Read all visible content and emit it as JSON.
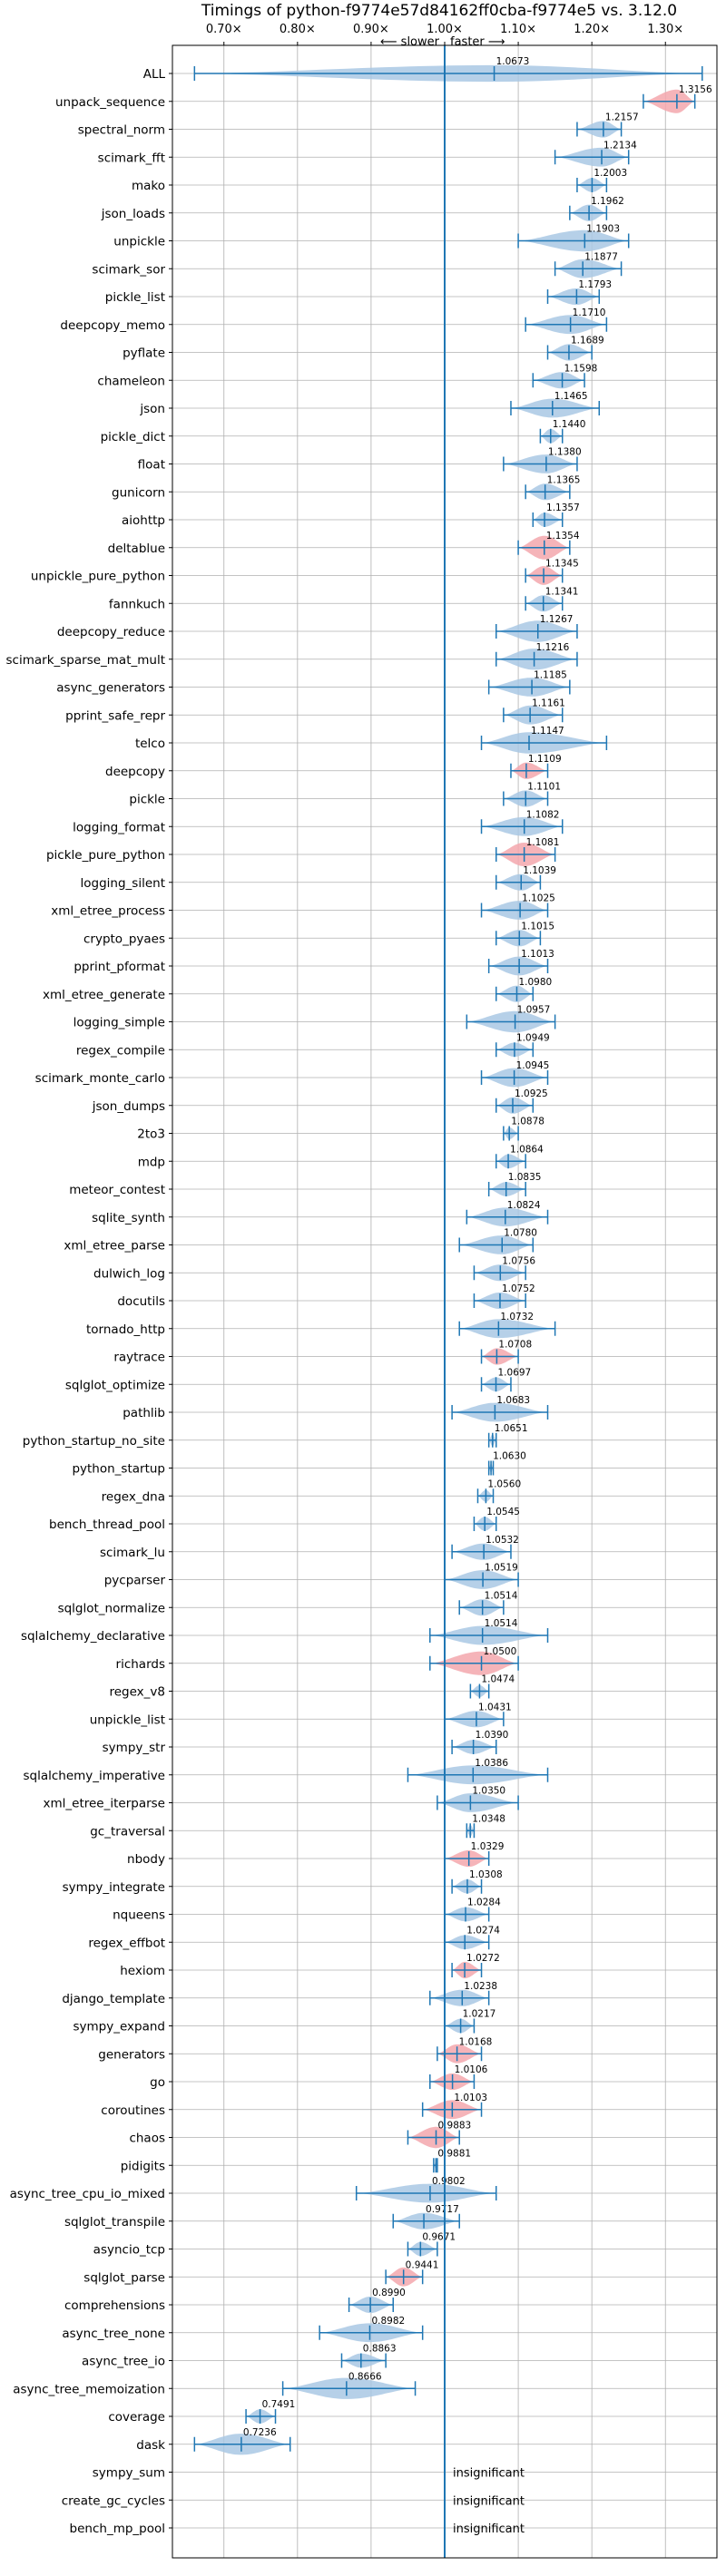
{
  "chart_data": {
    "type": "violin",
    "title": "Timings of python-f9774e57d84162ff0cba-f9774e5 vs. 3.12.0",
    "direction_labels": [
      "⟵ slower",
      "faster ⟶"
    ],
    "xlim": [
      0.63,
      1.37
    ],
    "x_ticks": [
      {
        "v": 0.7,
        "label": "0.70×"
      },
      {
        "v": 0.8,
        "label": "0.80×"
      },
      {
        "v": 0.9,
        "label": "0.90×"
      },
      {
        "v": 1.0,
        "label": "1.00×"
      },
      {
        "v": 1.1,
        "label": "1.10×"
      },
      {
        "v": 1.2,
        "label": "1.20×"
      },
      {
        "v": 1.3,
        "label": "1.30×"
      }
    ],
    "reference_line": 1.0,
    "grid": true,
    "colors": {
      "normal": "#a9c8e4",
      "highlight": "#f3a7ad",
      "line": "#1f77b4"
    },
    "insignificant_label": "insignificant",
    "series": [
      {
        "name": "ALL",
        "value": 1.0673,
        "label": "1.0673",
        "lo": 0.66,
        "hi": 1.35,
        "w": 0.7,
        "hl": false
      },
      {
        "name": "unpack_sequence",
        "value": 1.3156,
        "label": "1.3156",
        "lo": 1.27,
        "hi": 1.34,
        "w": 1.0,
        "hl": true
      },
      {
        "name": "spectral_norm",
        "value": 1.2157,
        "label": "1.2157",
        "lo": 1.18,
        "hi": 1.24,
        "w": 0.7,
        "hl": false
      },
      {
        "name": "scimark_fft",
        "value": 1.2134,
        "label": "1.2134",
        "lo": 1.15,
        "hi": 1.25,
        "w": 0.8,
        "hl": false
      },
      {
        "name": "mako",
        "value": 1.2003,
        "label": "1.2003",
        "lo": 1.18,
        "hi": 1.22,
        "w": 0.6,
        "hl": false
      },
      {
        "name": "json_loads",
        "value": 1.1962,
        "label": "1.1962",
        "lo": 1.17,
        "hi": 1.22,
        "w": 0.7,
        "hl": false
      },
      {
        "name": "unpickle",
        "value": 1.1903,
        "label": "1.1903",
        "lo": 1.1,
        "hi": 1.25,
        "w": 0.9,
        "hl": false
      },
      {
        "name": "scimark_sor",
        "value": 1.1877,
        "label": "1.1877",
        "lo": 1.15,
        "hi": 1.24,
        "w": 0.8,
        "hl": false
      },
      {
        "name": "pickle_list",
        "value": 1.1793,
        "label": "1.1793",
        "lo": 1.14,
        "hi": 1.21,
        "w": 0.7,
        "hl": false
      },
      {
        "name": "deepcopy_memo",
        "value": 1.171,
        "label": "1.1710",
        "lo": 1.11,
        "hi": 1.22,
        "w": 0.8,
        "hl": false
      },
      {
        "name": "pyflate",
        "value": 1.1689,
        "label": "1.1689",
        "lo": 1.14,
        "hi": 1.2,
        "w": 0.7,
        "hl": false
      },
      {
        "name": "chameleon",
        "value": 1.1598,
        "label": "1.1598",
        "lo": 1.12,
        "hi": 1.19,
        "w": 0.7,
        "hl": false
      },
      {
        "name": "json",
        "value": 1.1465,
        "label": "1.1465",
        "lo": 1.09,
        "hi": 1.21,
        "w": 0.8,
        "hl": false
      },
      {
        "name": "pickle_dict",
        "value": 1.144,
        "label": "1.1440",
        "lo": 1.13,
        "hi": 1.16,
        "w": 0.6,
        "hl": false
      },
      {
        "name": "float",
        "value": 1.138,
        "label": "1.1380",
        "lo": 1.08,
        "hi": 1.18,
        "w": 0.8,
        "hl": false
      },
      {
        "name": "gunicorn",
        "value": 1.1365,
        "label": "1.1365",
        "lo": 1.11,
        "hi": 1.17,
        "w": 0.7,
        "hl": false
      },
      {
        "name": "aiohttp",
        "value": 1.1357,
        "label": "1.1357",
        "lo": 1.12,
        "hi": 1.16,
        "w": 0.6,
        "hl": false
      },
      {
        "name": "deltablue",
        "value": 1.1354,
        "label": "1.1354",
        "lo": 1.1,
        "hi": 1.17,
        "w": 1.0,
        "hl": true
      },
      {
        "name": "unpickle_pure_python",
        "value": 1.1345,
        "label": "1.1345",
        "lo": 1.11,
        "hi": 1.16,
        "w": 0.8,
        "hl": true
      },
      {
        "name": "fannkuch",
        "value": 1.1341,
        "label": "1.1341",
        "lo": 1.11,
        "hi": 1.16,
        "w": 0.7,
        "hl": false
      },
      {
        "name": "deepcopy_reduce",
        "value": 1.1267,
        "label": "1.1267",
        "lo": 1.07,
        "hi": 1.18,
        "w": 0.9,
        "hl": false
      },
      {
        "name": "scimark_sparse_mat_mult",
        "value": 1.1216,
        "label": "1.1216",
        "lo": 1.07,
        "hi": 1.18,
        "w": 0.9,
        "hl": false
      },
      {
        "name": "async_generators",
        "value": 1.1185,
        "label": "1.1185",
        "lo": 1.06,
        "hi": 1.17,
        "w": 0.8,
        "hl": false
      },
      {
        "name": "pprint_safe_repr",
        "value": 1.1161,
        "label": "1.1161",
        "lo": 1.08,
        "hi": 1.16,
        "w": 0.8,
        "hl": false
      },
      {
        "name": "telco",
        "value": 1.1147,
        "label": "1.1147",
        "lo": 1.05,
        "hi": 1.22,
        "w": 0.9,
        "hl": false
      },
      {
        "name": "deepcopy",
        "value": 1.1109,
        "label": "1.1109",
        "lo": 1.09,
        "hi": 1.14,
        "w": 0.7,
        "hl": true
      },
      {
        "name": "pickle",
        "value": 1.1101,
        "label": "1.1101",
        "lo": 1.08,
        "hi": 1.14,
        "w": 0.7,
        "hl": false
      },
      {
        "name": "logging_format",
        "value": 1.1082,
        "label": "1.1082",
        "lo": 1.05,
        "hi": 1.16,
        "w": 0.8,
        "hl": false
      },
      {
        "name": "pickle_pure_python",
        "value": 1.1081,
        "label": "1.1081",
        "lo": 1.07,
        "hi": 1.15,
        "w": 1.0,
        "hl": true
      },
      {
        "name": "logging_silent",
        "value": 1.1039,
        "label": "1.1039",
        "lo": 1.07,
        "hi": 1.13,
        "w": 0.7,
        "hl": false
      },
      {
        "name": "xml_etree_process",
        "value": 1.1025,
        "label": "1.1025",
        "lo": 1.05,
        "hi": 1.14,
        "w": 0.8,
        "hl": false
      },
      {
        "name": "crypto_pyaes",
        "value": 1.1015,
        "label": "1.1015",
        "lo": 1.07,
        "hi": 1.13,
        "w": 0.7,
        "hl": false
      },
      {
        "name": "pprint_pformat",
        "value": 1.1013,
        "label": "1.1013",
        "lo": 1.06,
        "hi": 1.14,
        "w": 0.8,
        "hl": false
      },
      {
        "name": "xml_etree_generate",
        "value": 1.098,
        "label": "1.0980",
        "lo": 1.07,
        "hi": 1.12,
        "w": 0.7,
        "hl": false
      },
      {
        "name": "logging_simple",
        "value": 1.0957,
        "label": "1.0957",
        "lo": 1.03,
        "hi": 1.15,
        "w": 0.9,
        "hl": false
      },
      {
        "name": "regex_compile",
        "value": 1.0949,
        "label": "1.0949",
        "lo": 1.07,
        "hi": 1.12,
        "w": 0.6,
        "hl": false
      },
      {
        "name": "scimark_monte_carlo",
        "value": 1.0945,
        "label": "1.0945",
        "lo": 1.05,
        "hi": 1.14,
        "w": 0.8,
        "hl": false
      },
      {
        "name": "json_dumps",
        "value": 1.0925,
        "label": "1.0925",
        "lo": 1.07,
        "hi": 1.12,
        "w": 0.7,
        "hl": false
      },
      {
        "name": "2to3",
        "value": 1.0878,
        "label": "1.0878",
        "lo": 1.08,
        "hi": 1.1,
        "w": 0.5,
        "hl": false
      },
      {
        "name": "mdp",
        "value": 1.0864,
        "label": "1.0864",
        "lo": 1.07,
        "hi": 1.11,
        "w": 0.6,
        "hl": false
      },
      {
        "name": "meteor_contest",
        "value": 1.0835,
        "label": "1.0835",
        "lo": 1.06,
        "hi": 1.11,
        "w": 0.6,
        "hl": false
      },
      {
        "name": "sqlite_synth",
        "value": 1.0824,
        "label": "1.0824",
        "lo": 1.03,
        "hi": 1.14,
        "w": 0.8,
        "hl": false
      },
      {
        "name": "xml_etree_parse",
        "value": 1.078,
        "label": "1.0780",
        "lo": 1.02,
        "hi": 1.12,
        "w": 0.8,
        "hl": false
      },
      {
        "name": "dulwich_log",
        "value": 1.0756,
        "label": "1.0756",
        "lo": 1.04,
        "hi": 1.11,
        "w": 0.7,
        "hl": false
      },
      {
        "name": "docutils",
        "value": 1.0752,
        "label": "1.0752",
        "lo": 1.04,
        "hi": 1.11,
        "w": 0.7,
        "hl": false
      },
      {
        "name": "tornado_http",
        "value": 1.0732,
        "label": "1.0732",
        "lo": 1.02,
        "hi": 1.15,
        "w": 0.8,
        "hl": false
      },
      {
        "name": "raytrace",
        "value": 1.0708,
        "label": "1.0708",
        "lo": 1.05,
        "hi": 1.1,
        "w": 0.7,
        "hl": true
      },
      {
        "name": "sqlglot_optimize",
        "value": 1.0697,
        "label": "1.0697",
        "lo": 1.05,
        "hi": 1.09,
        "w": 0.6,
        "hl": false
      },
      {
        "name": "pathlib",
        "value": 1.0683,
        "label": "1.0683",
        "lo": 1.01,
        "hi": 1.14,
        "w": 0.8,
        "hl": false
      },
      {
        "name": "python_startup_no_site",
        "value": 1.0651,
        "label": "1.0651",
        "lo": 1.06,
        "hi": 1.07,
        "w": 0.5,
        "hl": false
      },
      {
        "name": "python_startup",
        "value": 1.063,
        "label": "1.0630",
        "lo": 1.06,
        "hi": 1.066,
        "w": 0.4,
        "hl": false
      },
      {
        "name": "regex_dna",
        "value": 1.056,
        "label": "1.0560",
        "lo": 1.045,
        "hi": 1.066,
        "w": 0.5,
        "hl": false
      },
      {
        "name": "bench_thread_pool",
        "value": 1.0545,
        "label": "1.0545",
        "lo": 1.04,
        "hi": 1.07,
        "w": 0.6,
        "hl": false
      },
      {
        "name": "scimark_lu",
        "value": 1.0532,
        "label": "1.0532",
        "lo": 1.01,
        "hi": 1.09,
        "w": 0.7,
        "hl": false
      },
      {
        "name": "pycparser",
        "value": 1.0519,
        "label": "1.0519",
        "lo": 1.0,
        "hi": 1.1,
        "w": 0.8,
        "hl": false
      },
      {
        "name": "sqlglot_normalize",
        "value": 1.0514,
        "label": "1.0514",
        "lo": 1.02,
        "hi": 1.08,
        "w": 0.7,
        "hl": false
      },
      {
        "name": "sqlalchemy_declarative",
        "value": 1.0514,
        "label": "1.0514",
        "lo": 0.98,
        "hi": 1.14,
        "w": 0.8,
        "hl": false
      },
      {
        "name": "richards",
        "value": 1.05,
        "label": "1.0500",
        "lo": 0.98,
        "hi": 1.1,
        "w": 1.0,
        "hl": true
      },
      {
        "name": "regex_v8",
        "value": 1.0474,
        "label": "1.0474",
        "lo": 1.035,
        "hi": 1.06,
        "w": 0.5,
        "hl": false
      },
      {
        "name": "unpickle_list",
        "value": 1.0431,
        "label": "1.0431",
        "lo": 1.0,
        "hi": 1.08,
        "w": 0.7,
        "hl": false
      },
      {
        "name": "sympy_str",
        "value": 1.039,
        "label": "1.0390",
        "lo": 1.01,
        "hi": 1.07,
        "w": 0.6,
        "hl": false
      },
      {
        "name": "sqlalchemy_imperative",
        "value": 1.0386,
        "label": "1.0386",
        "lo": 0.95,
        "hi": 1.14,
        "w": 0.8,
        "hl": false
      },
      {
        "name": "xml_etree_iterparse",
        "value": 1.035,
        "label": "1.0350",
        "lo": 0.99,
        "hi": 1.1,
        "w": 0.8,
        "hl": false
      },
      {
        "name": "gc_traversal",
        "value": 1.0348,
        "label": "1.0348",
        "lo": 1.03,
        "hi": 1.04,
        "w": 0.5,
        "hl": false
      },
      {
        "name": "nbody",
        "value": 1.0329,
        "label": "1.0329",
        "lo": 1.0,
        "hi": 1.06,
        "w": 0.7,
        "hl": true
      },
      {
        "name": "sympy_integrate",
        "value": 1.0308,
        "label": "1.0308",
        "lo": 1.01,
        "hi": 1.05,
        "w": 0.6,
        "hl": false
      },
      {
        "name": "nqueens",
        "value": 1.0284,
        "label": "1.0284",
        "lo": 1.0,
        "hi": 1.06,
        "w": 0.6,
        "hl": false
      },
      {
        "name": "regex_effbot",
        "value": 1.0274,
        "label": "1.0274",
        "lo": 1.0,
        "hi": 1.06,
        "w": 0.6,
        "hl": false
      },
      {
        "name": "hexiom",
        "value": 1.0272,
        "label": "1.0272",
        "lo": 1.01,
        "hi": 1.05,
        "w": 0.7,
        "hl": true
      },
      {
        "name": "django_template",
        "value": 1.0238,
        "label": "1.0238",
        "lo": 0.98,
        "hi": 1.06,
        "w": 0.7,
        "hl": false
      },
      {
        "name": "sympy_expand",
        "value": 1.0217,
        "label": "1.0217",
        "lo": 1.0,
        "hi": 1.04,
        "w": 0.6,
        "hl": false
      },
      {
        "name": "generators",
        "value": 1.0168,
        "label": "1.0168",
        "lo": 0.99,
        "hi": 1.05,
        "w": 0.8,
        "hl": true
      },
      {
        "name": "go",
        "value": 1.0106,
        "label": "1.0106",
        "lo": 0.98,
        "hi": 1.04,
        "w": 0.7,
        "hl": true
      },
      {
        "name": "coroutines",
        "value": 1.0103,
        "label": "1.0103",
        "lo": 0.97,
        "hi": 1.05,
        "w": 0.8,
        "hl": true
      },
      {
        "name": "chaos",
        "value": 0.9883,
        "label": "0.9883",
        "lo": 0.95,
        "hi": 1.02,
        "w": 0.9,
        "hl": true
      },
      {
        "name": "pidigits",
        "value": 0.9881,
        "label": "0.9881",
        "lo": 0.985,
        "hi": 0.99,
        "w": 0.3,
        "hl": false
      },
      {
        "name": "async_tree_cpu_io_mixed",
        "value": 0.9802,
        "label": "0.9802",
        "lo": 0.88,
        "hi": 1.07,
        "w": 0.8,
        "hl": false
      },
      {
        "name": "sqlglot_transpile",
        "value": 0.9717,
        "label": "0.9717",
        "lo": 0.93,
        "hi": 1.02,
        "w": 0.7,
        "hl": false
      },
      {
        "name": "asyncio_tcp",
        "value": 0.9671,
        "label": "0.9671",
        "lo": 0.95,
        "hi": 0.99,
        "w": 0.6,
        "hl": false
      },
      {
        "name": "sqlglot_parse",
        "value": 0.9441,
        "label": "0.9441",
        "lo": 0.92,
        "hi": 0.97,
        "w": 0.8,
        "hl": true
      },
      {
        "name": "comprehensions",
        "value": 0.899,
        "label": "0.8990",
        "lo": 0.87,
        "hi": 0.93,
        "w": 0.7,
        "hl": false
      },
      {
        "name": "async_tree_none",
        "value": 0.8982,
        "label": "0.8982",
        "lo": 0.83,
        "hi": 0.97,
        "w": 0.8,
        "hl": false
      },
      {
        "name": "async_tree_io",
        "value": 0.8863,
        "label": "0.8863",
        "lo": 0.86,
        "hi": 0.92,
        "w": 0.6,
        "hl": false
      },
      {
        "name": "async_tree_memoization",
        "value": 0.8666,
        "label": "0.8666",
        "lo": 0.78,
        "hi": 0.96,
        "w": 0.9,
        "hl": false
      },
      {
        "name": "coverage",
        "value": 0.7491,
        "label": "0.7491",
        "lo": 0.73,
        "hi": 0.77,
        "w": 0.6,
        "hl": false
      },
      {
        "name": "dask",
        "value": 0.7236,
        "label": "0.7236",
        "lo": 0.66,
        "hi": 0.79,
        "w": 0.9,
        "hl": false
      },
      {
        "name": "sympy_sum",
        "insignificant": true
      },
      {
        "name": "create_gc_cycles",
        "insignificant": true
      },
      {
        "name": "bench_mp_pool",
        "insignificant": true
      }
    ]
  }
}
